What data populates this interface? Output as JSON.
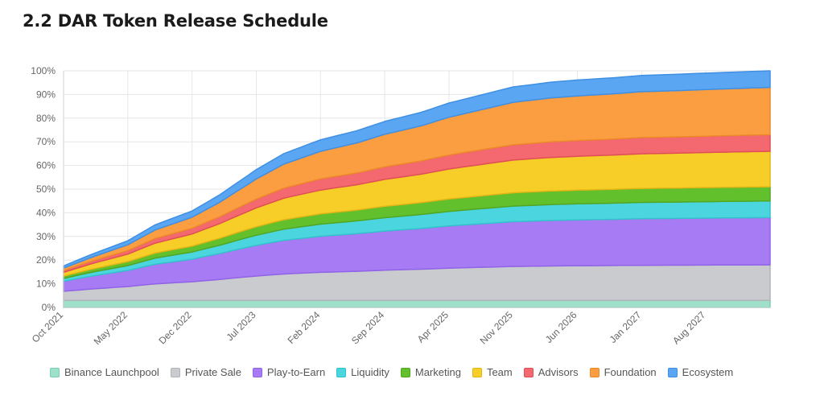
{
  "page": {
    "heading": "2.2 DAR Token Release Schedule"
  },
  "chart_data": {
    "type": "area",
    "stacked": true,
    "x_labels": [
      "Oct 2021",
      "May 2022",
      "Dec 2022",
      "Jul 2023",
      "Feb 2024",
      "Sep 2024",
      "Apr 2025",
      "Nov 2025",
      "Jun 2026",
      "Jan 2027",
      "Aug 2027"
    ],
    "x_range": [
      "Oct 2021",
      "Mar 2028"
    ],
    "ylim": [
      0,
      100
    ],
    "y_ticks": [
      "0%",
      "10%",
      "20%",
      "30%",
      "40%",
      "50%",
      "60%",
      "70%",
      "80%",
      "90%",
      "100%"
    ],
    "grid": true,
    "legend_position": "bottom",
    "cumulative_totals": {
      "x": [
        "Oct 2021",
        "Jan 2022",
        "May 2022",
        "Aug 2022",
        "Dec 2022",
        "Mar 2023",
        "Jul 2023",
        "Oct 2023",
        "Feb 2024",
        "Jun 2024",
        "Sep 2024",
        "Jan 2025",
        "Apr 2025",
        "Aug 2025",
        "Nov 2025",
        "Mar 2026",
        "Jun 2026",
        "Oct 2026",
        "Jan 2027",
        "May 2027",
        "Aug 2027",
        "Mar 2028"
      ],
      "values": [
        15,
        20,
        26,
        33,
        39,
        46,
        57,
        64,
        70,
        74,
        78,
        82,
        86,
        90,
        93,
        95,
        96,
        97,
        98,
        98.5,
        99,
        100
      ]
    },
    "series": [
      {
        "name": "Binance Launchpool",
        "color": "#9ee0c9",
        "border": "#7dcfb3",
        "final": 3
      },
      {
        "name": "Private Sale",
        "color": "#c9cbcf",
        "border": "#b0b3b8",
        "final": 15
      },
      {
        "name": "Play-to-Earn",
        "color": "#a77bf4",
        "border": "#9063e8",
        "final": 20
      },
      {
        "name": "Liquidity",
        "color": "#4bd5de",
        "border": "#33c2cc",
        "final": 7
      },
      {
        "name": "Marketing",
        "color": "#63c02d",
        "border": "#52a622",
        "final": 6
      },
      {
        "name": "Team",
        "color": "#f7cd28",
        "border": "#e0b515",
        "final": 15
      },
      {
        "name": "Advisors",
        "color": "#f4686f",
        "border": "#e04f57",
        "final": 7
      },
      {
        "name": "Foundation",
        "color": "#fb9e42",
        "border": "#ec8a28",
        "final": 20
      },
      {
        "name": "Ecosystem",
        "color": "#5aa6f2",
        "border": "#3f8fe3",
        "final": 7
      }
    ]
  }
}
